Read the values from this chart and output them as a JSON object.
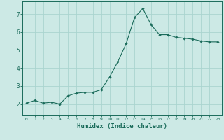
{
  "x": [
    0,
    1,
    2,
    3,
    4,
    5,
    6,
    7,
    8,
    9,
    10,
    11,
    12,
    13,
    14,
    15,
    16,
    17,
    18,
    19,
    20,
    21,
    22,
    23
  ],
  "y": [
    2.05,
    2.2,
    2.05,
    2.1,
    2.0,
    2.45,
    2.6,
    2.65,
    2.65,
    2.8,
    3.5,
    4.35,
    5.35,
    6.8,
    7.3,
    6.4,
    5.85,
    5.85,
    5.7,
    5.65,
    5.6,
    5.5,
    5.45,
    5.45
  ],
  "line_color": "#1a6b5a",
  "marker": "D",
  "marker_size": 1.8,
  "bg_color": "#cce9e5",
  "grid_color": "#aad4cf",
  "tick_color": "#1a6b5a",
  "xlabel": "Humidex (Indice chaleur)",
  "xlabel_fontsize": 6.5,
  "ylim": [
    1.4,
    7.7
  ],
  "yticks": [
    2,
    3,
    4,
    5,
    6,
    7
  ],
  "xlim": [
    -0.5,
    23.5
  ]
}
